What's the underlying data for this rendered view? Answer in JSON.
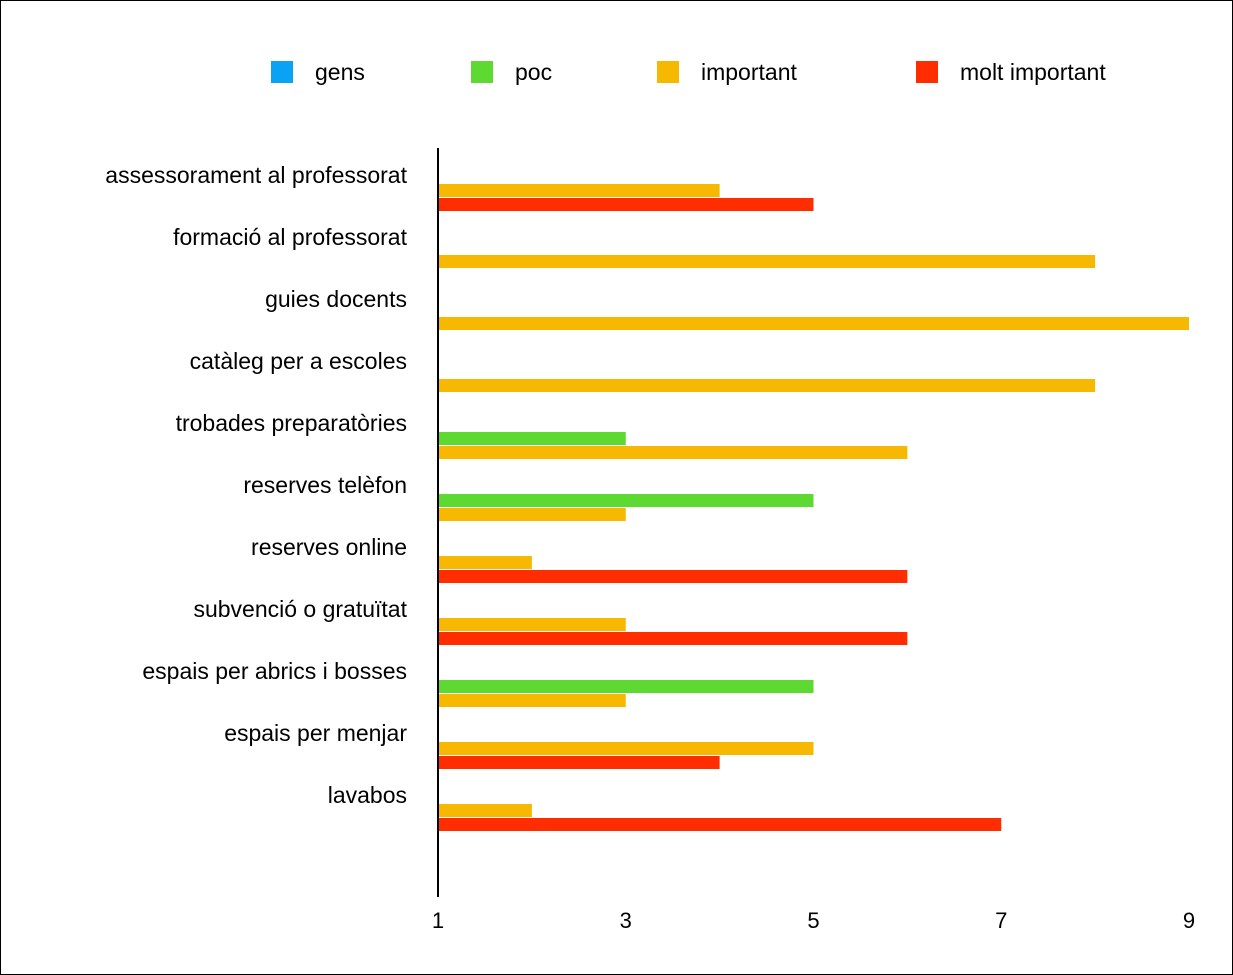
{
  "legend": {
    "position": "top",
    "items": [
      {
        "label": "gens",
        "color": "#0aa2f5"
      },
      {
        "label": "poc",
        "color": "#5dd932"
      },
      {
        "label": "important",
        "color": "#f7b802"
      },
      {
        "label": "molt important",
        "color": "#ff2d00"
      }
    ]
  },
  "chart_data": {
    "type": "bar",
    "orientation": "horizontal",
    "title": "",
    "xlabel": "",
    "ylabel": "",
    "xlim": [
      1,
      9
    ],
    "x_ticks": [
      "1",
      "3",
      "5",
      "7",
      "9"
    ],
    "grid": false,
    "categories": [
      "assessorament al professorat",
      "formació al professorat",
      "guies docents",
      "catàleg per a escoles",
      "trobades preparatòries",
      "reserves telèfon",
      "reserves online",
      "subvenció o gratuïtat",
      "espais per abrics i bosses",
      "espais per menjar",
      "lavabos"
    ],
    "series": [
      {
        "name": "gens",
        "color": "#0aa2f5",
        "values": [
          null,
          null,
          null,
          null,
          null,
          null,
          null,
          null,
          null,
          null,
          null
        ]
      },
      {
        "name": "poc",
        "color": "#5dd932",
        "values": [
          null,
          null,
          null,
          null,
          3,
          5,
          null,
          null,
          5,
          null,
          null
        ]
      },
      {
        "name": "important",
        "color": "#f7b802",
        "values": [
          4,
          8,
          9,
          8,
          6,
          3,
          2,
          3,
          3,
          5,
          2
        ]
      },
      {
        "name": "molt important",
        "color": "#ff2d00",
        "values": [
          5,
          null,
          null,
          null,
          null,
          null,
          6,
          6,
          null,
          4,
          7
        ]
      }
    ]
  }
}
